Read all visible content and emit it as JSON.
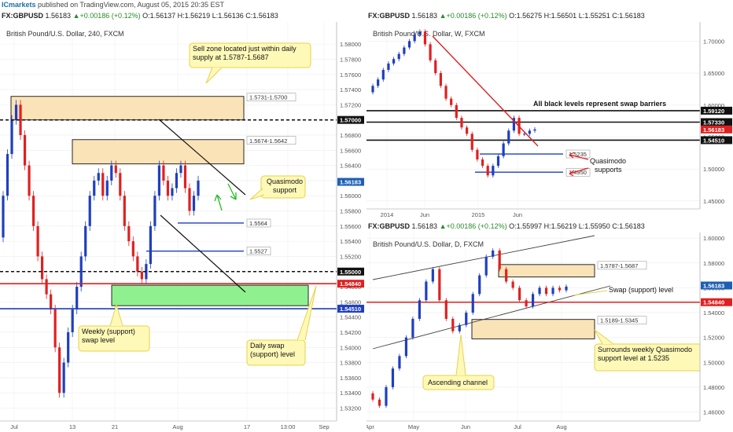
{
  "topbar": {
    "brand": "ICmarkets",
    "text": " published on TradingView.com, August 05, 2015 20:35 EST"
  },
  "panels": [
    {
      "header": {
        "symbol": "FX:GBPUSD",
        "price": "1.56183",
        "change": "+0.00186 (+0.12%)",
        "o": "O:1.56137",
        "h": "H:1.56219",
        "l": "L:1.56136",
        "c": "C:1.56183"
      },
      "title": "British Pound/U.S. Dollar, 240, FXCM"
    },
    {
      "header": {
        "symbol": "FX:GBPUSD",
        "price": "1.56183",
        "change": "+0.00186 (+0.12%)",
        "o": "O:1.56275",
        "h": "H:1.56501",
        "l": "L:1.55251",
        "c": "C:1.56183"
      },
      "title": "British Pound/U.S. Dollar, W, FXCM"
    },
    {
      "header": {
        "symbol": "FX:GBPUSD",
        "price": "1.56183",
        "change": "+0.00186 (+0.12%)",
        "o": "O:1.55997",
        "h": "H:1.56219",
        "l": "L:1.55950",
        "c": "C:1.56183"
      },
      "title": "British Pound/U.S. Dollar, D, FXCM"
    }
  ],
  "chart_data": [
    {
      "type": "candlestick",
      "title": "British Pound/U.S. Dollar, 240, FXCM",
      "ylim": [
        1.5305,
        1.5825
      ],
      "y_ticks": [
        "1.58000",
        "1.57800",
        "1.57600",
        "1.57400",
        "1.57200",
        "1.57000",
        "1.56800",
        "1.56600",
        "1.56400",
        "1.56200",
        "1.56000",
        "1.55800",
        "1.55600",
        "1.55400",
        "1.55200",
        "1.55000",
        "1.54800",
        "1.54600",
        "1.54400",
        "1.54200",
        "1.54000",
        "1.53800",
        "1.53600",
        "1.53400",
        "1.53200"
      ],
      "x_ticks": [
        "Jul",
        "13",
        "21",
        "Aug",
        "17",
        "13:00",
        "Sep"
      ],
      "price_tags": [
        {
          "label": "1.57000",
          "value": 1.57,
          "color": "#111111"
        },
        {
          "label": "1.56183",
          "value": 1.56183,
          "color": "#1d5fb5"
        },
        {
          "label": "1.55000",
          "value": 1.55,
          "color": "#111111"
        },
        {
          "label": "1.54840",
          "value": 1.5484,
          "color": "#e02020"
        },
        {
          "label": "1.54510",
          "value": 1.5451,
          "color": "#1f3fbf"
        }
      ],
      "zones": [
        {
          "label": "1.5731-1.5700",
          "low": 1.57,
          "high": 1.5731,
          "color": "#fbe3b8"
        },
        {
          "label": "1.5674-1.5642",
          "low": 1.5642,
          "high": 1.5674,
          "color": "#fbe3b8"
        },
        {
          "label": "",
          "low": 1.5455,
          "high": 1.5482,
          "color": "#8ff08f"
        }
      ],
      "levels": [
        {
          "label": "1.5564",
          "value": 1.5564
        },
        {
          "label": "1.5527",
          "value": 1.5527
        }
      ],
      "annotations": [
        "Sell zone located just within daily supply at 1.5787-1.5687",
        "Quasimodo support",
        "Weekly (support) swap level",
        "Daily swap (support) level"
      ],
      "series_close": [
        1.56,
        1.5655,
        1.57,
        1.572,
        1.568,
        1.564,
        1.56,
        1.556,
        1.552,
        1.549,
        1.547,
        1.545,
        1.54,
        1.534,
        1.538,
        1.542,
        1.545,
        1.548,
        1.552,
        1.556,
        1.56,
        1.562,
        1.563,
        1.56,
        1.562,
        1.564,
        1.563,
        1.56,
        1.556,
        1.554,
        1.552,
        1.55,
        1.549,
        1.551,
        1.556,
        1.56,
        1.564,
        1.562,
        1.56,
        1.561,
        1.563,
        1.564,
        1.561,
        1.558,
        1.56,
        1.562
      ]
    },
    {
      "type": "candlestick",
      "title": "British Pound/U.S. Dollar, W, FXCM",
      "ylim": [
        1.44,
        1.725
      ],
      "y_ticks": [
        "1.70000",
        "1.65000",
        "1.60000",
        "1.55000",
        "1.50000",
        "1.45000"
      ],
      "x_ticks": [
        "2014",
        "Jun",
        "2015",
        "Jun"
      ],
      "price_tags": [
        {
          "label": "1.59120",
          "value": 1.5912,
          "color": "#111111"
        },
        {
          "label": "1.57330",
          "value": 1.5733,
          "color": "#111111"
        },
        {
          "label": "1.56183",
          "value": 1.56183,
          "color": "#e02020"
        },
        {
          "label": "1.54510",
          "value": 1.5451,
          "color": "#111111"
        }
      ],
      "levels": [
        {
          "label": "1.5235",
          "value": 1.5235
        },
        {
          "label": "1.4950",
          "value": 1.495
        }
      ],
      "annotations": [
        "All black levels represent swap barriers",
        "Quasimodo supports"
      ],
      "series_close": [
        1.63,
        1.64,
        1.655,
        1.665,
        1.672,
        1.68,
        1.69,
        1.7,
        1.71,
        1.715,
        1.695,
        1.67,
        1.65,
        1.63,
        1.61,
        1.6,
        1.58,
        1.565,
        1.555,
        1.53,
        1.515,
        1.505,
        1.49,
        1.505,
        1.52,
        1.54,
        1.56,
        1.58,
        1.555,
        1.555,
        1.56,
        1.562
      ]
    },
    {
      "type": "candlestick",
      "title": "British Pound/U.S. Dollar, D, FXCM",
      "ylim": [
        1.454,
        1.602
      ],
      "y_ticks": [
        "1.60000",
        "1.58000",
        "1.56000",
        "1.54000",
        "1.52000",
        "1.50000",
        "1.48000",
        "1.46000"
      ],
      "x_ticks": [
        "Apr",
        "May",
        "Jun",
        "Jul",
        "Aug"
      ],
      "price_tags": [
        {
          "label": "1.56183",
          "value": 1.56183,
          "color": "#1d5fb5"
        },
        {
          "label": "1.54840",
          "value": 1.5484,
          "color": "#e02020"
        }
      ],
      "zones": [
        {
          "label": "1.5787-1.5687",
          "low": 1.5687,
          "high": 1.5787,
          "color": "#fbe3b8"
        },
        {
          "label": "1.5189-1.5345",
          "low": 1.5189,
          "high": 1.5345,
          "color": "#fbe3b8"
        }
      ],
      "annotations": [
        "Swap (support) level",
        "Surrounds weekly Quasimodo support level at 1.5235",
        "Ascending channel"
      ],
      "series_close": [
        1.47,
        1.465,
        1.48,
        1.495,
        1.505,
        1.52,
        1.535,
        1.55,
        1.565,
        1.575,
        1.55,
        1.535,
        1.525,
        1.53,
        1.54,
        1.555,
        1.57,
        1.585,
        1.59,
        1.575,
        1.565,
        1.56,
        1.55,
        1.545,
        1.555,
        1.56,
        1.555,
        1.56,
        1.558,
        1.561
      ]
    }
  ]
}
